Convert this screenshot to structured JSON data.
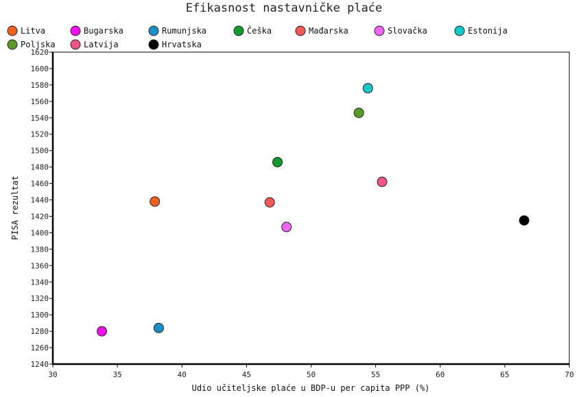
{
  "chart_data": {
    "type": "scatter",
    "title": "Efikasnost nastavničke plaće",
    "xlabel": "Udio učiteljske plaće u BDP-u per capita PPP (%)",
    "ylabel": "PISA rezultat",
    "xlim": [
      30,
      70
    ],
    "ylim": [
      1240,
      1620
    ],
    "xticks": [
      30,
      35,
      40,
      45,
      50,
      55,
      60,
      65,
      70
    ],
    "yticks": [
      1240,
      1260,
      1280,
      1300,
      1320,
      1340,
      1360,
      1380,
      1400,
      1420,
      1440,
      1460,
      1480,
      1500,
      1520,
      1540,
      1560,
      1580,
      1600,
      1620
    ],
    "legend_position": "top",
    "grid": false,
    "series": [
      {
        "name": "Litva",
        "color": "#f2601f",
        "x": [
          37.9
        ],
        "y": [
          1438
        ]
      },
      {
        "name": "Bugarska",
        "color": "#ee11ee",
        "x": [
          33.8
        ],
        "y": [
          1280
        ]
      },
      {
        "name": "Rumunjska",
        "color": "#1a8fc8",
        "x": [
          38.2
        ],
        "y": [
          1284
        ]
      },
      {
        "name": "Češka",
        "color": "#129a2e",
        "x": [
          47.4
        ],
        "y": [
          1486
        ]
      },
      {
        "name": "Mađarska",
        "color": "#f15a5a",
        "x": [
          46.8
        ],
        "y": [
          1437
        ]
      },
      {
        "name": "Slovačka",
        "color": "#f066f0",
        "x": [
          48.1
        ],
        "y": [
          1407
        ]
      },
      {
        "name": "Estonija",
        "color": "#14c8c8",
        "x": [
          54.4
        ],
        "y": [
          1576
        ]
      },
      {
        "name": "Poljska",
        "color": "#5a9a28",
        "x": [
          53.7
        ],
        "y": [
          1546
        ]
      },
      {
        "name": "Latvija",
        "color": "#ee5588",
        "x": [
          55.5
        ],
        "y": [
          1462
        ]
      },
      {
        "name": "Hrvatska",
        "color": "#000000",
        "x": [
          66.5
        ],
        "y": [
          1415
        ]
      }
    ]
  }
}
